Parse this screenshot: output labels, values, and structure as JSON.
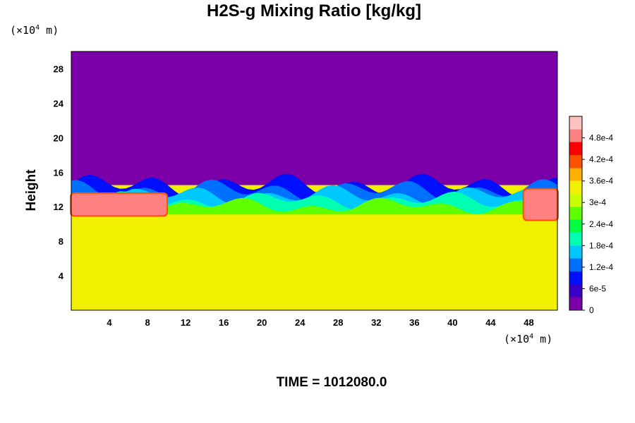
{
  "chart_data": {
    "type": "heatmap",
    "title": "H2S-g Mixing Ratio [kg/kg]",
    "ylabel": "Height",
    "y_unit": "(×10⁴ m)",
    "x_unit": "(×10⁴ m)",
    "xlim": [
      0,
      51
    ],
    "ylim": [
      0,
      30
    ],
    "x_ticks": [
      "4",
      "8",
      "12",
      "16",
      "20",
      "24",
      "28",
      "32",
      "36",
      "40",
      "44",
      "48"
    ],
    "y_ticks": [
      "4",
      "8",
      "12",
      "16",
      "20",
      "24",
      "28"
    ],
    "colorbar": {
      "range": [
        0,
        0.00054
      ],
      "tick_values": [
        0,
        6e-05,
        0.00012,
        0.00018,
        0.00024,
        0.0003,
        0.00036,
        0.00042,
        0.00048
      ],
      "tick_labels": [
        "0",
        "6e-5",
        "1.2e-4",
        "1.8e-4",
        "2.4e-4",
        "3e-4",
        "3.6e-4",
        "4.2e-4",
        "4.8e-4"
      ],
      "colors": [
        "#7b00a8",
        "#3a00c8",
        "#0010ff",
        "#0070ff",
        "#00c8ff",
        "#00ffb0",
        "#00ff40",
        "#60ff00",
        "#c8ff00",
        "#f0f000",
        "#ffb000",
        "#ff5000",
        "#ff0000",
        "#ff8080",
        "#ffc0c0"
      ]
    },
    "regions": {
      "upper_value": 0,
      "lower_value": 0.000345,
      "interface_height_approx": 14.5,
      "high_patches": [
        {
          "x_range": [
            0,
            10
          ],
          "y_range": [
            11,
            13.5
          ],
          "value_approx": 0.0005
        },
        {
          "x_range": [
            47.5,
            51
          ],
          "y_range": [
            10.5,
            14
          ],
          "value_approx": 0.0005
        }
      ]
    },
    "grid": false
  },
  "footer": {
    "time_label": "TIME = 1012080.0"
  }
}
